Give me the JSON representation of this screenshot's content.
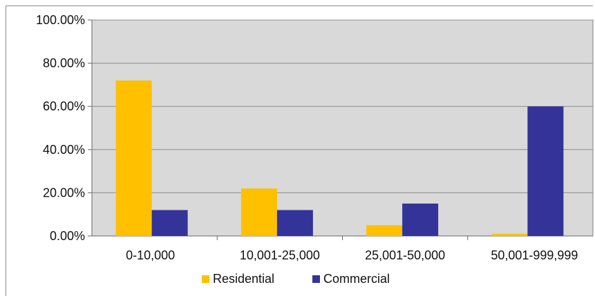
{
  "chart_data": {
    "type": "bar",
    "categories": [
      "0-10,000",
      "10,001-25,000",
      "25,001-50,000",
      "50,001-999,999"
    ],
    "series": [
      {
        "name": "Residential",
        "values": [
          72,
          22,
          5,
          1
        ],
        "color": "#FFC000"
      },
      {
        "name": "Commercial",
        "values": [
          12,
          12,
          15,
          60
        ],
        "color": "#333399"
      }
    ],
    "title": "",
    "xlabel": "",
    "ylabel": "",
    "ylim": [
      0,
      100
    ],
    "yticks": [
      "0.00%",
      "20.00%",
      "40.00%",
      "60.00%",
      "80.00%",
      "100.00%"
    ],
    "grid": true,
    "legend_position": "bottom",
    "plot_background": "#D9D9D9",
    "gridline_color": "#8C8C8C"
  }
}
